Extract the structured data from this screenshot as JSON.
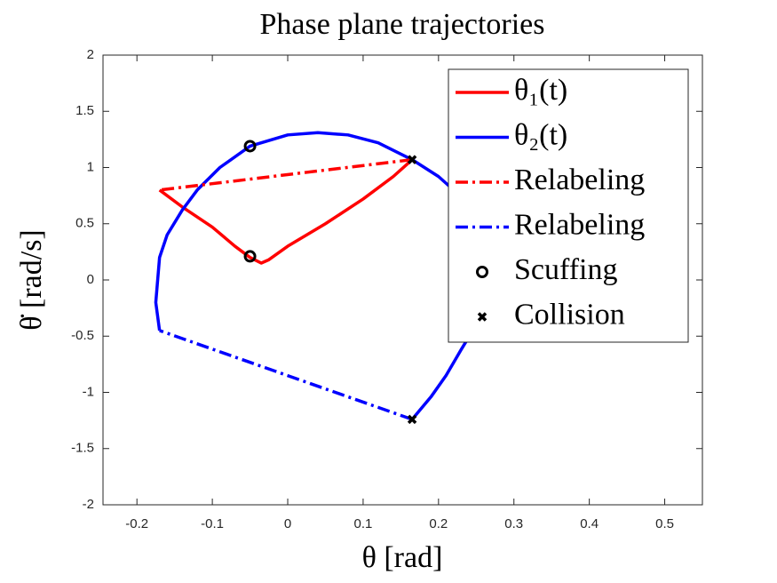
{
  "chart_data": {
    "type": "line",
    "title": "Phase plane trajectories",
    "xlabel": "θ [rad]",
    "ylabel": "θ̇ [rad/s]",
    "xlim": [
      -0.245,
      0.55
    ],
    "ylim": [
      -2,
      2
    ],
    "xticks": [
      -0.2,
      -0.1,
      0,
      0.1,
      0.2,
      0.3,
      0.4,
      0.5
    ],
    "yticks": [
      -2,
      -1.5,
      -1,
      -0.5,
      0,
      0.5,
      1,
      1.5,
      2
    ],
    "legend": "upper right",
    "series": [
      {
        "name": "θ₁(t)",
        "color": "#ff0000",
        "style": "solid",
        "marker": "none",
        "x": [
          -0.17,
          -0.14,
          -0.1,
          -0.07,
          -0.05,
          -0.035,
          -0.025,
          0,
          0.05,
          0.1,
          0.14,
          0.165
        ],
        "values": [
          0.8,
          0.65,
          0.47,
          0.3,
          0.2,
          0.15,
          0.18,
          0.3,
          0.5,
          0.72,
          0.92,
          1.07
        ]
      },
      {
        "name": "θ₂(t)",
        "color": "#0000ff",
        "style": "solid",
        "marker": "none",
        "x": [
          -0.17,
          -0.175,
          -0.17,
          -0.16,
          -0.14,
          -0.12,
          -0.09,
          -0.05,
          0,
          0.04,
          0.08,
          0.12,
          0.165,
          0.2,
          0.22,
          0.245,
          0.26,
          0.268,
          0.27,
          0.265,
          0.25,
          0.23,
          0.21,
          0.19,
          0.165
        ],
        "values": [
          -0.45,
          -0.2,
          0.2,
          0.4,
          0.62,
          0.8,
          1.0,
          1.19,
          1.29,
          1.31,
          1.29,
          1.22,
          1.07,
          0.92,
          0.8,
          0.6,
          0.4,
          0.2,
          0,
          -0.2,
          -0.4,
          -0.62,
          -0.85,
          -1.04,
          -1.24
        ]
      },
      {
        "name": "Relabeling",
        "color": "#ff0000",
        "style": "dashdot",
        "marker": "none",
        "x": [
          0.165,
          -0.17
        ],
        "values": [
          1.07,
          0.8
        ]
      },
      {
        "name": "Relabeling",
        "color": "#0000ff",
        "style": "dashdot",
        "marker": "none",
        "x": [
          0.165,
          -0.17
        ],
        "values": [
          -1.24,
          -0.45
        ]
      },
      {
        "name": "Scuffing",
        "color": "#000000",
        "style": "none",
        "marker": "o",
        "x": [
          -0.05,
          -0.05
        ],
        "values": [
          1.19,
          0.21
        ]
      },
      {
        "name": "Collision",
        "color": "#000000",
        "style": "none",
        "marker": "x",
        "x": [
          0.165,
          0.165
        ],
        "values": [
          1.07,
          -1.24
        ]
      }
    ]
  }
}
